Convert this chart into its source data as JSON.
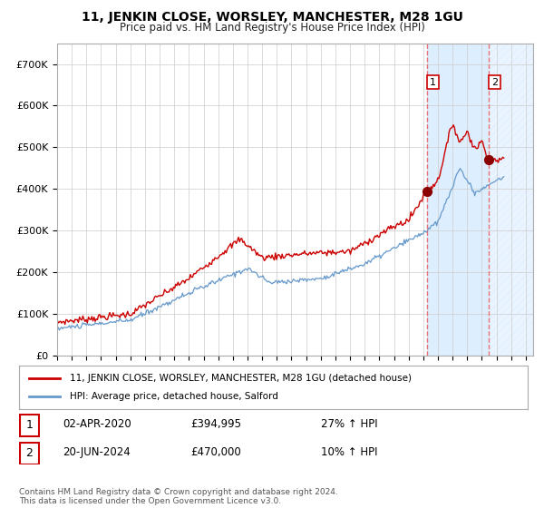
{
  "title": "11, JENKIN CLOSE, WORSLEY, MANCHESTER, M28 1GU",
  "subtitle": "Price paid vs. HM Land Registry's House Price Index (HPI)",
  "legend_property": "11, JENKIN CLOSE, WORSLEY, MANCHESTER, M28 1GU (detached house)",
  "legend_hpi": "HPI: Average price, detached house, Salford",
  "transaction1_date": "02-APR-2020",
  "transaction1_price": "£394,995",
  "transaction1_hpi": "27% ↑ HPI",
  "transaction2_date": "20-JUN-2024",
  "transaction2_price": "£470,000",
  "transaction2_hpi": "10% ↑ HPI",
  "footer": "Contains HM Land Registry data © Crown copyright and database right 2024.\nThis data is licensed under the Open Government Licence v3.0.",
  "property_color": "#cc0000",
  "hpi_color": "#6699cc",
  "marker_color": "#8b0000",
  "dashed_line_color": "#ee5555",
  "shaded_color": "#ddeeff",
  "grid_color": "#cccccc",
  "background_color": "#ffffff",
  "ylim": [
    0,
    750000
  ],
  "yticks": [
    0,
    100000,
    200000,
    300000,
    400000,
    500000,
    600000,
    700000
  ],
  "ytick_labels": [
    "£0",
    "£100K",
    "£200K",
    "£300K",
    "£400K",
    "£500K",
    "£600K",
    "£700K"
  ],
  "transaction1_year": 2020.25,
  "transaction2_year": 2024.46,
  "transaction1_value": 394995,
  "transaction2_value": 470000
}
